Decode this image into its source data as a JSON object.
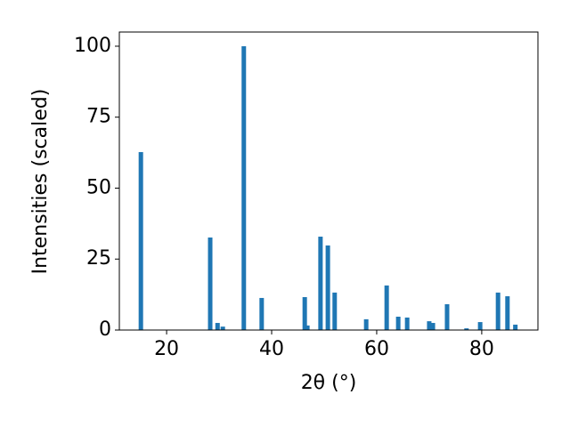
{
  "chart_data": {
    "type": "bar",
    "xlabel": "2θ (°)",
    "ylabel": "Intensities (scaled)",
    "x": [
      15.1,
      28.3,
      29.7,
      30.7,
      34.7,
      38.1,
      46.3,
      46.8,
      49.3,
      50.7,
      52.0,
      58.0,
      61.9,
      64.1,
      65.8,
      70.0,
      70.7,
      73.4,
      77.1,
      79.7,
      83.1,
      84.9,
      86.4
    ],
    "values": [
      62.7,
      32.6,
      2.5,
      1.2,
      100,
      11.3,
      11.6,
      1.6,
      32.9,
      29.8,
      13.2,
      3.8,
      15.7,
      4.7,
      4.4,
      3.1,
      2.5,
      9.1,
      0.6,
      2.8,
      13.2,
      11.9,
      1.9
    ],
    "color": "#1f77b4",
    "xlim": [
      11.0,
      90.7
    ],
    "xticks": [
      20,
      40,
      60,
      80
    ],
    "ylim": [
      0,
      105
    ],
    "yticks": [
      0,
      25,
      50,
      75,
      100
    ]
  }
}
